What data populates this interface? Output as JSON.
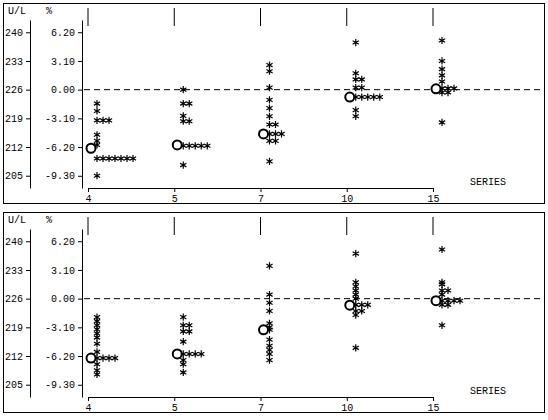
{
  "chart_data": [
    {
      "type": "scatter",
      "categories": [
        "4",
        "5",
        "7",
        "10",
        "15"
      ],
      "x_label": "SERIES",
      "y_label": "U/L",
      "y2_label": "%",
      "ylim": [
        202,
        243
      ],
      "yticks": [
        205,
        212,
        219,
        226,
        233,
        240
      ],
      "y2lim": [
        -10.62,
        7.52
      ],
      "y2ticks": [
        {
          "value": -9.3,
          "label": "-9.30"
        },
        {
          "value": -6.2,
          "label": "-6.20"
        },
        {
          "value": -3.1,
          "label": "-3.10"
        },
        {
          "value": 0,
          "label": "0.00"
        },
        {
          "value": 3.1,
          "label": "3.10"
        },
        {
          "value": 6.2,
          "label": "6.20"
        }
      ],
      "reference": {
        "value": 226,
        "line_style": "dashed"
      },
      "series": [
        {
          "marker": "asterisk",
          "color": "#000000",
          "values": [
            [
              222.6,
              220.8,
              218.5,
              218.5,
              218.5,
              215.0,
              213.5,
              212.5,
              209.2,
              209.2,
              209.2,
              209.2,
              209.2,
              209.2,
              209.2,
              205.0
            ],
            [
              226.0,
              222.6,
              222.6,
              219.6,
              218.3,
              218.3,
              212.3,
              212.3,
              212.3,
              212.3,
              212.3,
              207.6
            ],
            [
              232.0,
              230.5,
              226.5,
              223.5,
              221.5,
              219.5,
              217.5,
              217.5,
              215.2,
              215.2,
              215.2,
              213.5,
              213.5,
              208.5
            ],
            [
              237.5,
              230.0,
              228.5,
              228.5,
              226.5,
              226.5,
              224.2,
              224.2,
              224.2,
              224.2,
              224.2,
              221.0,
              219.5
            ],
            [
              238.0,
              233.0,
              231.0,
              229.5,
              228.0,
              226.3,
              226.3,
              226.3,
              225.3,
              225.3,
              218.0
            ]
          ]
        },
        {
          "marker": "circle",
          "color": "#000000",
          "values": [
            211.7,
            212.5,
            215.2,
            224.2,
            226.2
          ]
        }
      ]
    },
    {
      "type": "scatter",
      "categories": [
        "4",
        "5",
        "7",
        "10",
        "15"
      ],
      "x_label": "SERIES",
      "y_label": "U/L",
      "y2_label": "%",
      "ylim": [
        202,
        243
      ],
      "yticks": [
        205,
        212,
        219,
        226,
        233,
        240
      ],
      "y2lim": [
        -10.62,
        7.52
      ],
      "y2ticks": [
        {
          "value": -9.3,
          "label": "-9.30"
        },
        {
          "value": -6.2,
          "label": "-6.20"
        },
        {
          "value": -3.1,
          "label": "-3.10"
        },
        {
          "value": 0,
          "label": "0.00"
        },
        {
          "value": 3.1,
          "label": "3.10"
        },
        {
          "value": 6.2,
          "label": "6.20"
        }
      ],
      "reference": {
        "value": 226,
        "line_style": "dashed"
      },
      "series": [
        {
          "marker": "asterisk",
          "color": "#000000",
          "values": [
            [
              221.5,
              220.5,
              219.5,
              218.5,
              217.5,
              216.5,
              215.0,
              213.0,
              211.5,
              211.5,
              211.5,
              211.5,
              210.0,
              208.5,
              207.5
            ],
            [
              221.5,
              219.5,
              219.5,
              218.0,
              218.0,
              215.5,
              212.5,
              212.5,
              212.5,
              212.5,
              211.0,
              210.0,
              208.0
            ],
            [
              234.0,
              227.0,
              225.0,
              223.0,
              220.0,
              219.0,
              218.4,
              216.0,
              214.5,
              213.5,
              212.5,
              211.0
            ],
            [
              237.0,
              230.0,
              229.0,
              228.0,
              227.0,
              226.0,
              224.5,
              224.5,
              224.5,
              223.0,
              223.0,
              222.0,
              214.0
            ],
            [
              238.0,
              230.0,
              229.5,
              228.0,
              228.0,
              227.0,
              225.5,
              225.5,
              225.5,
              225.5,
              224.5,
              224.5,
              219.5
            ]
          ]
        },
        {
          "marker": "circle",
          "color": "#000000",
          "values": [
            211.5,
            212.5,
            218.4,
            224.4,
            225.5
          ]
        }
      ]
    }
  ]
}
